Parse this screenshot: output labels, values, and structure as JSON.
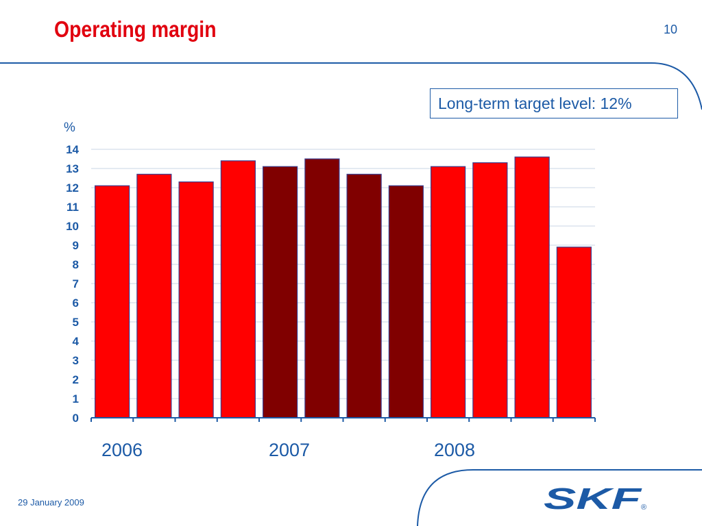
{
  "header": {
    "title": "Operating margin",
    "page_number": "10"
  },
  "callout": {
    "text": "Long-term target level: 12%"
  },
  "footer": {
    "date": "29 January 2009",
    "logo_text": "SKF",
    "logo_mark": "®"
  },
  "colors": {
    "title": "#e1000f",
    "brand_blue": "#1c5aa6",
    "bar_bright": "#ff0000",
    "bar_dark": "#800000"
  },
  "chart_data": {
    "type": "bar",
    "title": "",
    "ylabel": "%",
    "xlabel": "",
    "ylim": [
      0,
      14
    ],
    "yticks": [
      0,
      1,
      2,
      3,
      4,
      5,
      6,
      7,
      8,
      9,
      10,
      11,
      12,
      13,
      14
    ],
    "grid": true,
    "legend": "none",
    "year_labels": [
      "2006",
      "2007",
      "2008"
    ],
    "values": [
      12.1,
      12.7,
      12.3,
      13.4,
      13.1,
      13.5,
      12.7,
      12.1,
      13.1,
      13.3,
      13.6,
      8.9
    ],
    "bar_colors": [
      "#ff0000",
      "#ff0000",
      "#ff0000",
      "#ff0000",
      "#800000",
      "#800000",
      "#800000",
      "#800000",
      "#ff0000",
      "#ff0000",
      "#ff0000",
      "#ff0000"
    ]
  }
}
